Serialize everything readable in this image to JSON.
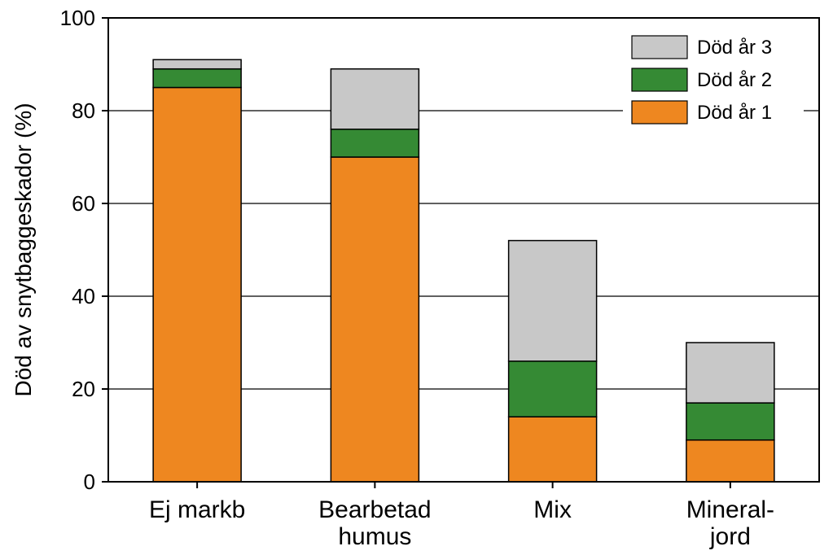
{
  "chart_data": {
    "type": "bar",
    "stacked": true,
    "categories": [
      [
        "Ej markb"
      ],
      [
        "Bearbetad",
        "humus"
      ],
      [
        "Mix"
      ],
      [
        "Mineral-",
        "jord"
      ]
    ],
    "series": [
      {
        "name": "Död år 1",
        "color": "#ee8720",
        "values": [
          85,
          70,
          14,
          9
        ]
      },
      {
        "name": "Död år 2",
        "color": "#358a34",
        "values": [
          4,
          6,
          12,
          8
        ]
      },
      {
        "name": "Död år 3",
        "color": "#c8c8c8",
        "values": [
          2,
          13,
          26,
          13
        ]
      }
    ],
    "ylabel": "Död av snytbaggeskador (%)",
    "ylim": [
      0,
      100
    ],
    "yticks": [
      0,
      20,
      40,
      60,
      80,
      100
    ],
    "grid": true,
    "legend": "top-right"
  }
}
